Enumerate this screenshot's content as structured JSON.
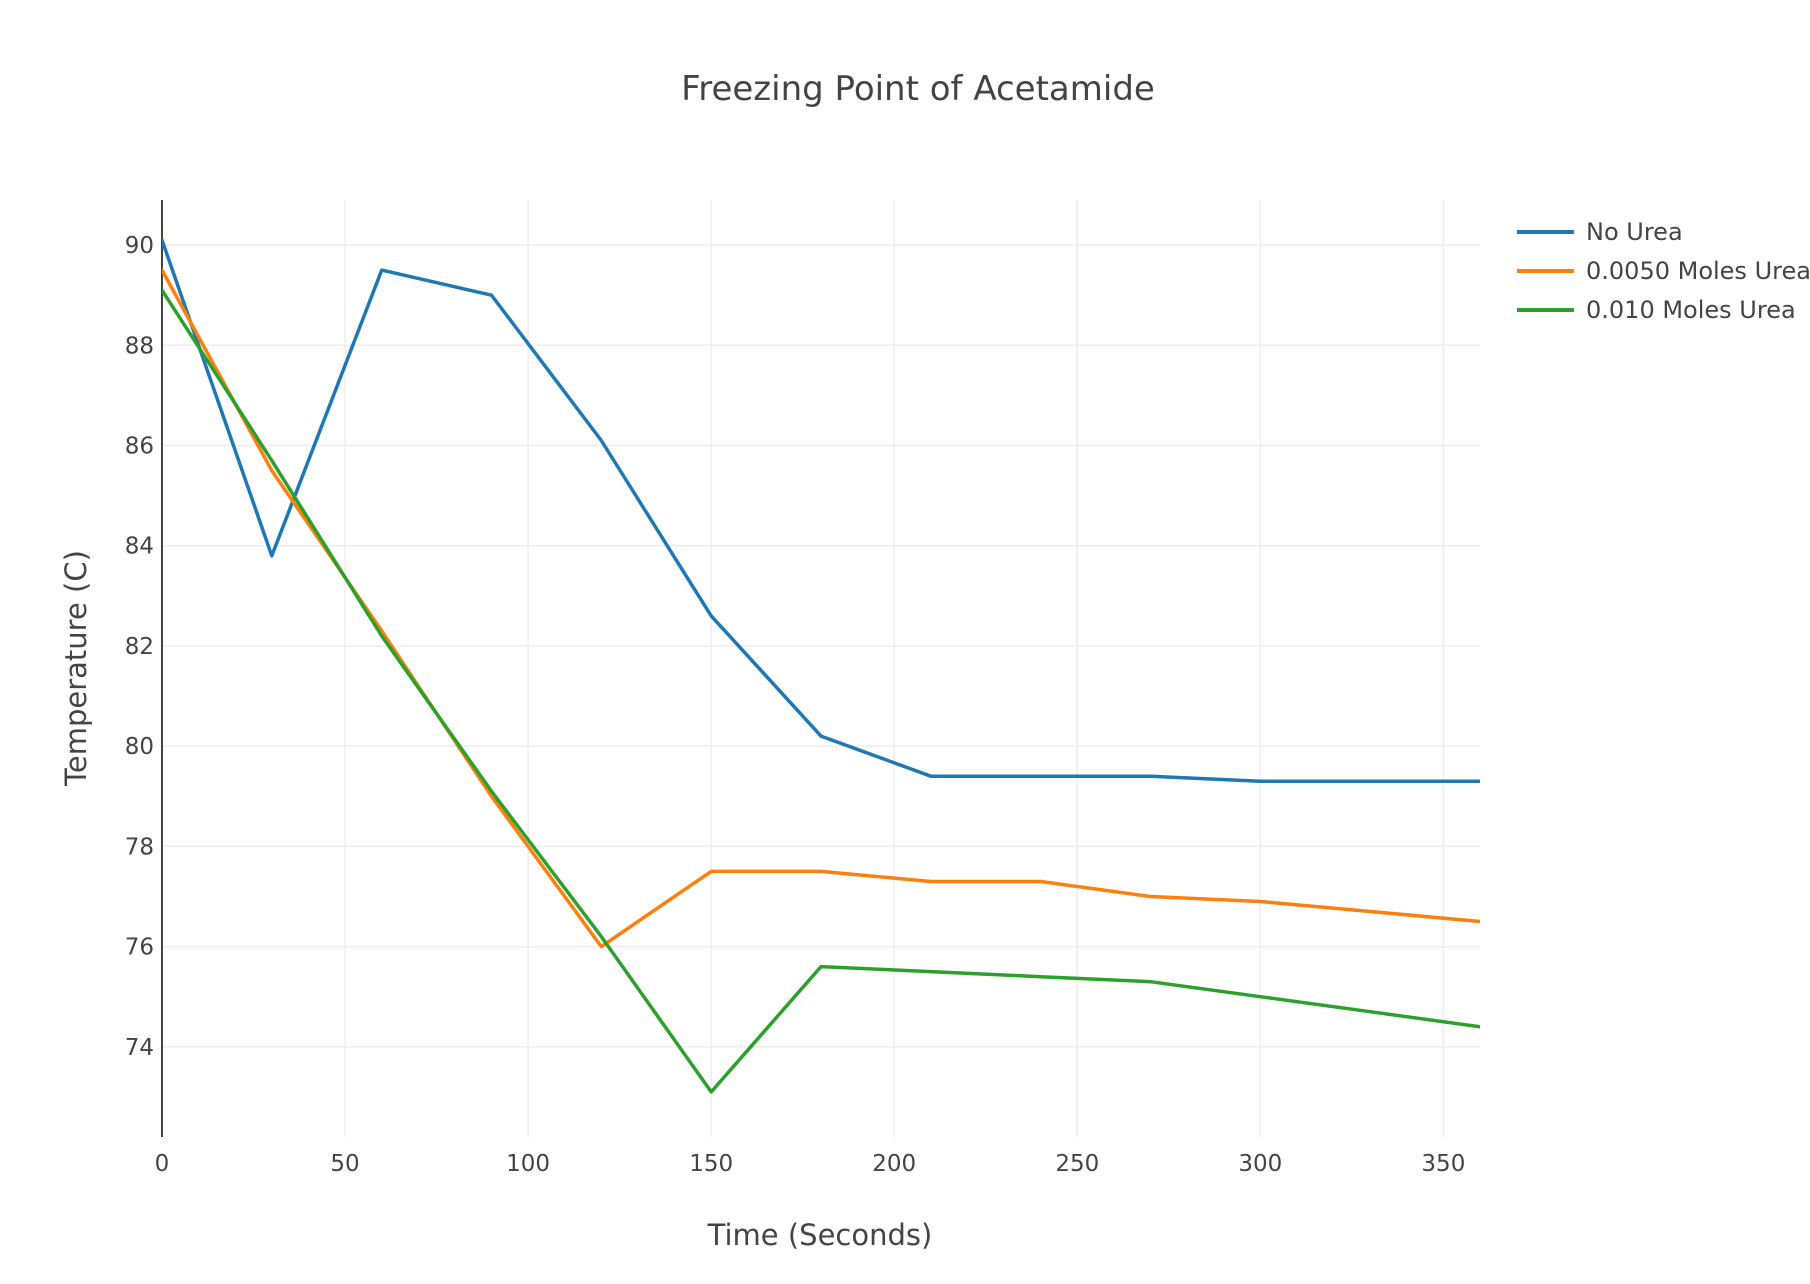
{
  "chart_data": {
    "type": "line",
    "title": "Freezing Point of Acetamide",
    "xlabel": "Time (Seconds)",
    "ylabel": "Temperature (C)",
    "xlim": [
      0,
      360
    ],
    "ylim": [
      72.2,
      90.9
    ],
    "x_ticks": [
      0,
      50,
      100,
      150,
      200,
      250,
      300,
      350
    ],
    "y_ticks": [
      74,
      76,
      78,
      80,
      82,
      84,
      86,
      88,
      90
    ],
    "grid": true,
    "legend_position": "top-right",
    "series": [
      {
        "name": "No Urea",
        "color": "#1f77b4",
        "x": [
          0,
          30,
          60,
          90,
          120,
          150,
          180,
          210,
          240,
          270,
          300,
          330,
          360
        ],
        "y": [
          90.1,
          83.8,
          89.5,
          89.0,
          86.1,
          82.6,
          80.2,
          79.4,
          79.4,
          79.4,
          79.3,
          79.3,
          79.3
        ]
      },
      {
        "name": "0.0050 Moles Urea",
        "color": "#ff7f0e",
        "x": [
          0,
          30,
          60,
          90,
          120,
          150,
          180,
          210,
          240,
          270,
          300,
          330,
          360
        ],
        "y": [
          89.5,
          85.5,
          82.3,
          79.0,
          76.0,
          77.5,
          77.5,
          77.3,
          77.3,
          77.0,
          76.9,
          76.7,
          76.5
        ]
      },
      {
        "name": "0.010 Moles Urea",
        "color": "#2ca02c",
        "x": [
          0,
          30,
          60,
          90,
          120,
          150,
          180,
          210,
          240,
          270,
          300,
          330,
          360
        ],
        "y": [
          89.1,
          85.7,
          82.2,
          79.1,
          76.2,
          73.1,
          75.6,
          75.5,
          75.4,
          75.3,
          75.0,
          74.7,
          74.4
        ]
      }
    ]
  }
}
